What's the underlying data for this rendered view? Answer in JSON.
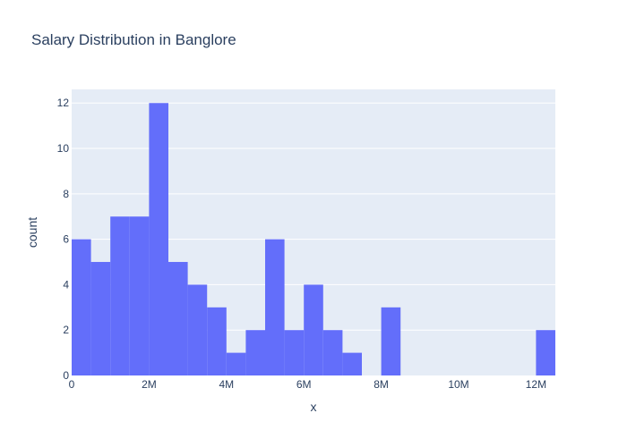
{
  "chart_data": {
    "type": "bar",
    "title": "Salary Distribution in Banglore",
    "xlabel": "x",
    "ylabel": "count",
    "bin_width": 500000,
    "xlim": [
      0,
      12500000
    ],
    "ylim": [
      0,
      12.6
    ],
    "x_ticks": [
      0,
      2000000,
      4000000,
      6000000,
      8000000,
      10000000,
      12000000
    ],
    "x_tick_labels": [
      "0",
      "2M",
      "4M",
      "6M",
      "8M",
      "10M",
      "12M"
    ],
    "y_ticks": [
      0,
      2,
      4,
      6,
      8,
      10,
      12
    ],
    "y_tick_labels": [
      "0",
      "2",
      "4",
      "6",
      "8",
      "10",
      "12"
    ],
    "bins_start": [
      0,
      500000,
      1000000,
      1500000,
      2000000,
      2500000,
      3000000,
      3500000,
      4000000,
      4500000,
      5000000,
      5500000,
      6000000,
      6500000,
      7000000,
      7500000,
      8000000,
      8500000,
      9000000,
      9500000,
      10000000,
      10500000,
      11000000,
      11500000,
      12000000
    ],
    "values": [
      6,
      5,
      7,
      7,
      12,
      5,
      4,
      3,
      1,
      2,
      6,
      2,
      4,
      2,
      1,
      0,
      3,
      0,
      0,
      0,
      0,
      0,
      0,
      0,
      2
    ],
    "bar_color": "#636efa",
    "plot_bg": "#e5ecf6",
    "grid": true
  }
}
